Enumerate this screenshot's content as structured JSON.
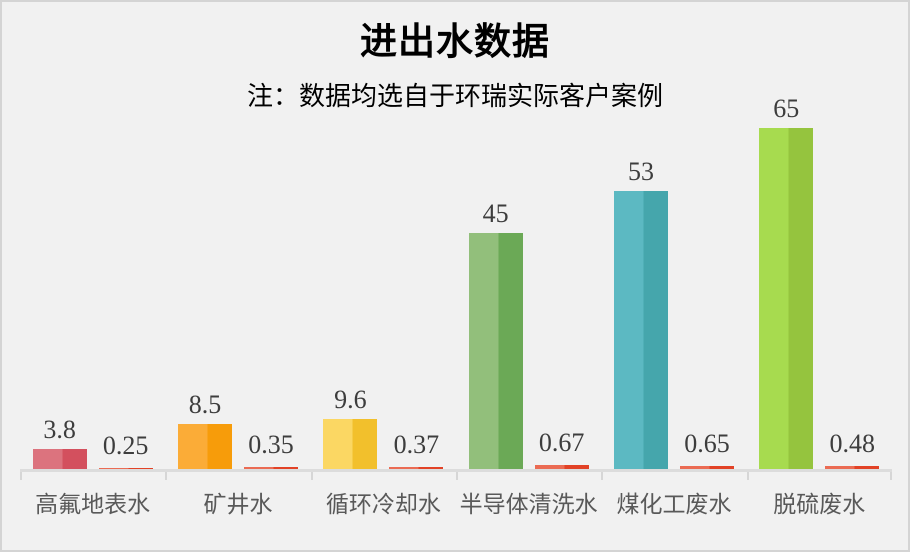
{
  "page": {
    "background_color": "#f1f1f1",
    "border_color": "#d4d4d4",
    "axis_line_color": "#dcdcdc",
    "value_label_color": "#3d3d3d",
    "category_label_color": "#595959"
  },
  "chart_data": {
    "type": "bar",
    "title": "进出水数据",
    "subtitle": "注：数据均选自于环瑞实际客户案例",
    "categories": [
      "高氟地表水",
      "矿井水",
      "循环冷却水",
      "半导体清洗水",
      "煤化工废水",
      "脱硫废水"
    ],
    "series": [
      {
        "name": "inlet",
        "values": [
          3.8,
          8.5,
          9.6,
          45,
          53,
          65
        ],
        "labels": [
          "3.8",
          "8.5",
          "9.6",
          "45",
          "53",
          "65"
        ],
        "bar_colors": [
          {
            "light": "#dc737e",
            "dark": "#d3505e"
          },
          {
            "light": "#fbac37",
            "dark": "#f79c0a"
          },
          {
            "light": "#fbd763",
            "dark": "#f2c02c"
          },
          {
            "light": "#92bf7b",
            "dark": "#6ba956"
          },
          {
            "light": "#5cb9c2",
            "dark": "#45a6ac"
          },
          {
            "light": "#a7db4f",
            "dark": "#95c43e"
          }
        ]
      },
      {
        "name": "outlet",
        "values": [
          0.25,
          0.35,
          0.37,
          0.67,
          0.65,
          0.48
        ],
        "labels": [
          "0.25",
          "0.35",
          "0.37",
          "0.67",
          "0.65",
          "0.48"
        ],
        "bar_color": {
          "light": "#eb6b53",
          "dark": "#e24226"
        }
      }
    ],
    "ylim": [
      0,
      65
    ],
    "xlabel": "",
    "ylabel": "",
    "grid": false,
    "legend": false,
    "value_labels_shown": true
  }
}
